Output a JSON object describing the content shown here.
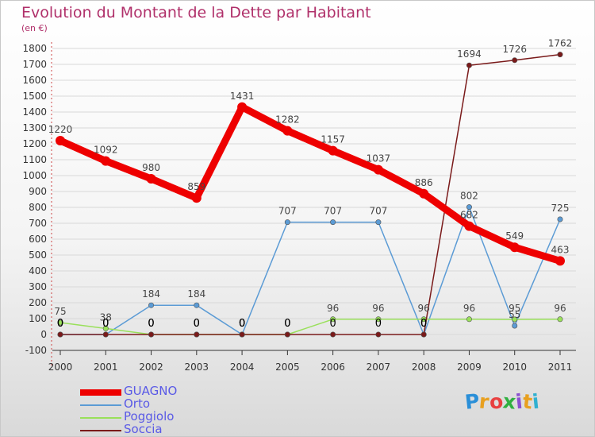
{
  "title": "Evolution du Montant de la Dette par Habitant",
  "unit": "(en €)",
  "logo": "Proxiti",
  "colors": {
    "title": "#b0306a",
    "legend_text": "#5a5ae6",
    "axis": "#333333",
    "grid": "#d8d8d8"
  },
  "chart_data": {
    "type": "line",
    "x": [
      "2000",
      "2001",
      "2002",
      "2003",
      "2004",
      "2005",
      "2006",
      "2007",
      "2008",
      "2009",
      "2010",
      "2011"
    ],
    "ylim": [
      -100,
      1800
    ],
    "yticks": [
      -100,
      0,
      100,
      200,
      300,
      400,
      500,
      600,
      700,
      800,
      900,
      1000,
      1100,
      1200,
      1300,
      1400,
      1500,
      1600,
      1700,
      1800
    ],
    "grid": true,
    "legend_position": "bottom-left",
    "series": [
      {
        "name": "GUAGNO",
        "color": "#ee0000",
        "values": [
          1220,
          1092,
          980,
          859,
          1431,
          1282,
          1157,
          1037,
          886,
          682,
          549,
          463
        ],
        "labels": [
          "1220",
          "1092",
          "980",
          "859",
          "1431",
          "1282",
          "1157",
          "1037",
          "886",
          "682",
          "549",
          "463"
        ]
      },
      {
        "name": "Orto",
        "color": "#5b9bd5",
        "values": [
          0,
          0,
          184,
          184,
          0,
          707,
          707,
          707,
          0,
          802,
          55,
          725
        ],
        "labels": [
          "0",
          "0",
          "184",
          "184",
          "0",
          "707",
          "707",
          "707",
          "0",
          "802",
          "55",
          "725"
        ]
      },
      {
        "name": "Poggiolo",
        "color": "#99e05a",
        "values": [
          75,
          38,
          0,
          0,
          0,
          0,
          96,
          96,
          96,
          96,
          95,
          96
        ],
        "labels": [
          "75",
          "38",
          "0",
          "0",
          "0",
          "0",
          "96",
          "96",
          "96",
          "96",
          "95",
          "96"
        ]
      },
      {
        "name": "Soccia",
        "color": "#7a1a1a",
        "values": [
          0,
          0,
          0,
          0,
          0,
          0,
          0,
          0,
          0,
          1694,
          1726,
          1762
        ],
        "labels": [
          "0",
          "0",
          "0",
          "0",
          "0",
          "0",
          "0",
          "0",
          "0",
          "1694",
          "1726",
          "1762"
        ]
      }
    ]
  }
}
